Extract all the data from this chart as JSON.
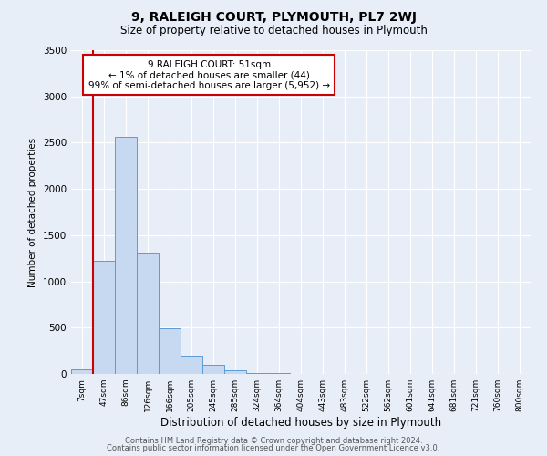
{
  "title": "9, RALEIGH COURT, PLYMOUTH, PL7 2WJ",
  "subtitle": "Size of property relative to detached houses in Plymouth",
  "xlabel": "Distribution of detached houses by size in Plymouth",
  "ylabel": "Number of detached properties",
  "bar_labels": [
    "7sqm",
    "47sqm",
    "86sqm",
    "126sqm",
    "166sqm",
    "205sqm",
    "245sqm",
    "285sqm",
    "324sqm",
    "364sqm",
    "404sqm",
    "443sqm",
    "483sqm",
    "522sqm",
    "562sqm",
    "601sqm",
    "641sqm",
    "681sqm",
    "721sqm",
    "760sqm",
    "800sqm"
  ],
  "bar_values": [
    50,
    1220,
    2560,
    1310,
    490,
    195,
    100,
    40,
    10,
    5,
    3,
    2,
    2,
    1,
    0,
    0,
    0,
    0,
    0,
    0,
    0
  ],
  "bar_color": "#c6d9f1",
  "bar_edge_color": "#5b9bd5",
  "ylim": [
    0,
    3500
  ],
  "yticks": [
    0,
    500,
    1000,
    1500,
    2000,
    2500,
    3000,
    3500
  ],
  "vline_x": 1,
  "vline_color": "#cc0000",
  "annotation_title": "9 RALEIGH COURT: 51sqm",
  "annotation_line1": "← 1% of detached houses are smaller (44)",
  "annotation_line2": "99% of semi-detached houses are larger (5,952) →",
  "annotation_box_color": "#cc0000",
  "footer_line1": "Contains HM Land Registry data © Crown copyright and database right 2024.",
  "footer_line2": "Contains public sector information licensed under the Open Government Licence v3.0.",
  "bg_color": "#e8eef8",
  "grid_color": "#ffffff"
}
